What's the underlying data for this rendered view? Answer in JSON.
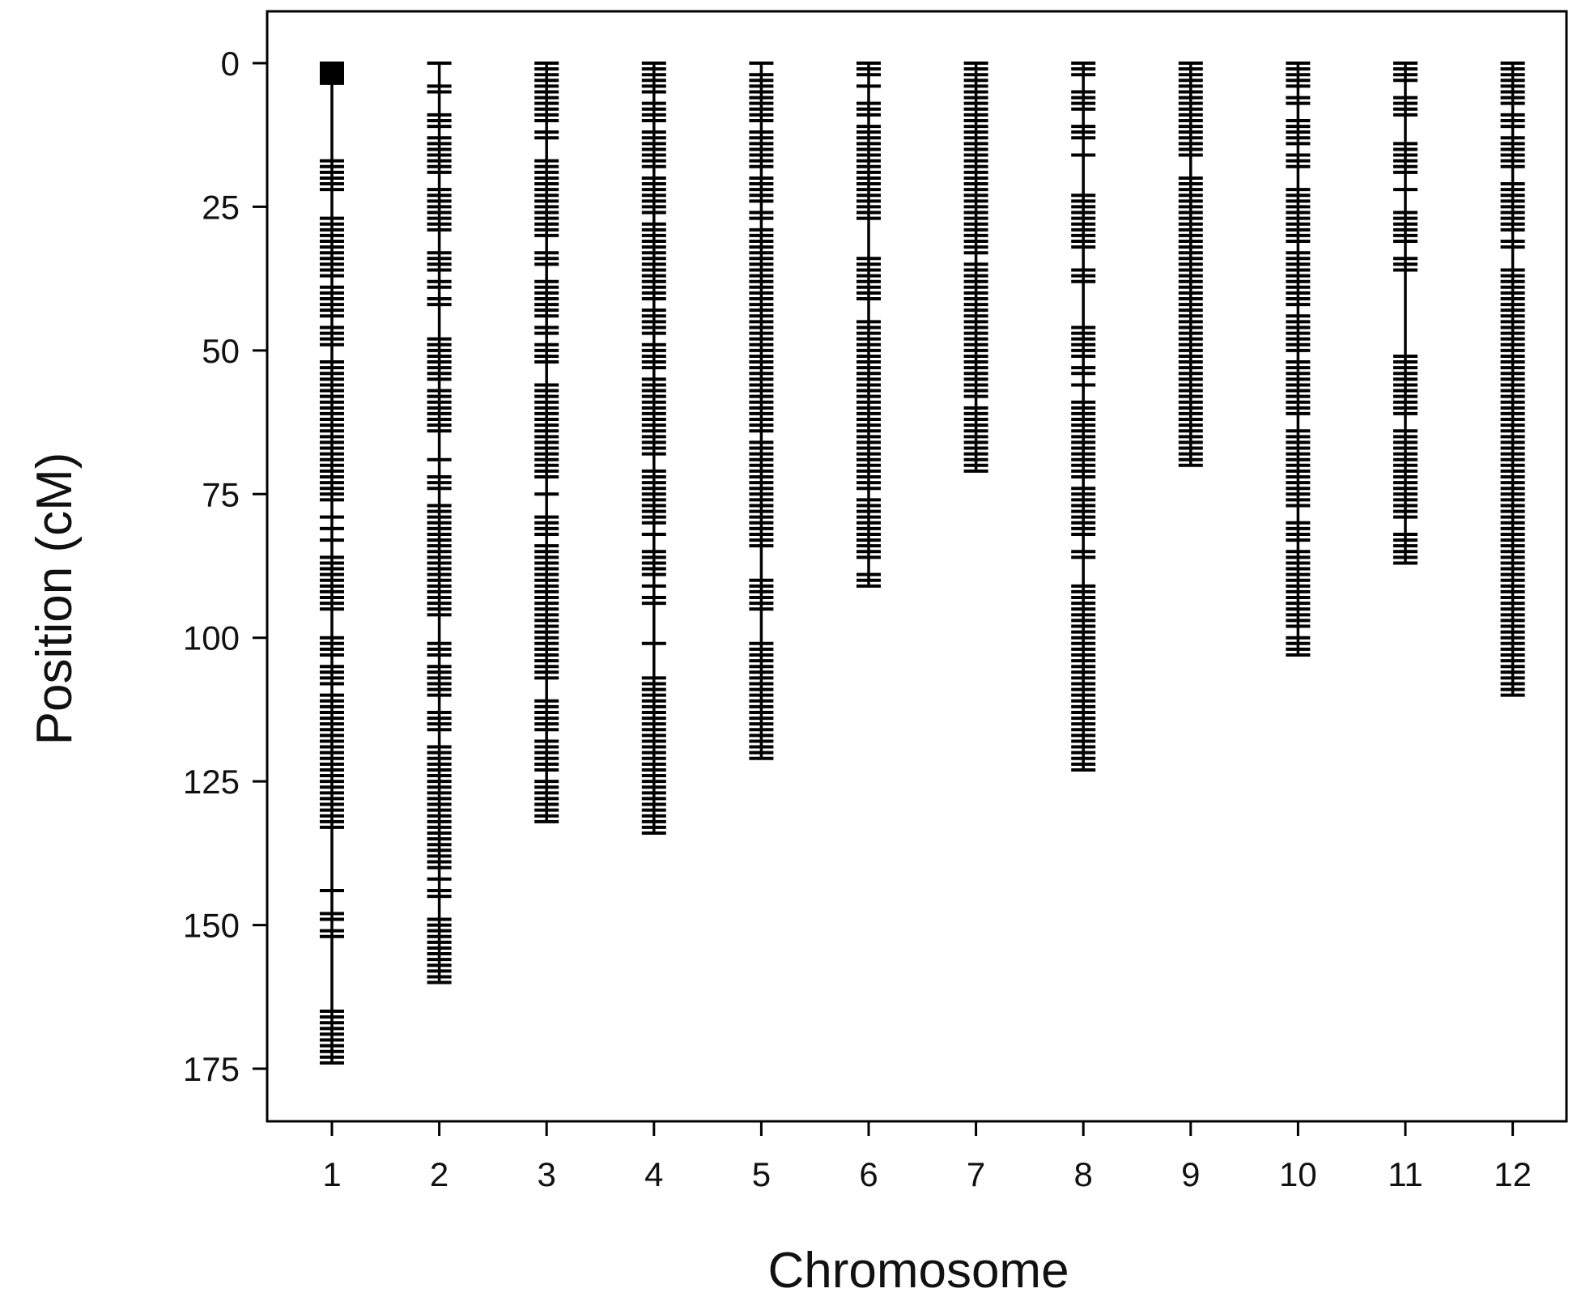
{
  "chart_data": {
    "type": "scatter",
    "title": "",
    "xlabel": "Chromosome",
    "ylabel": "Position (cM)",
    "categories": [
      "1",
      "2",
      "3",
      "4",
      "5",
      "6",
      "7",
      "8",
      "9",
      "10",
      "11",
      "12"
    ],
    "ylim": [
      0,
      175
    ],
    "y_inverted": true,
    "y_ticks": [
      0,
      25,
      50,
      75,
      100,
      125,
      150,
      175
    ],
    "grid": false,
    "legend": "none",
    "colors": {
      "marks": "#000000",
      "frame": "#000000"
    },
    "series": [
      {
        "chromosome": "1",
        "length": 174,
        "markers": [
          0,
          0.5,
          1,
          1.5,
          2,
          2.5,
          3,
          3.5,
          17,
          18,
          19,
          20,
          21,
          22,
          27,
          28,
          29,
          30,
          31,
          32,
          33,
          34,
          35,
          36,
          37,
          39,
          40,
          41,
          42,
          43,
          44,
          46,
          47,
          48,
          49,
          52,
          53,
          54,
          55,
          56,
          57,
          58,
          59,
          60,
          61,
          62,
          63,
          64,
          65,
          66,
          67,
          68,
          69,
          70,
          71,
          72,
          73,
          74,
          75,
          76,
          79,
          81,
          83,
          86,
          87,
          88,
          89,
          90,
          91,
          92,
          93,
          94,
          95,
          100,
          101,
          102,
          103,
          105,
          106,
          107,
          108,
          110,
          111,
          112,
          113,
          114,
          115,
          116,
          117,
          118,
          119,
          120,
          121,
          122,
          123,
          124,
          125,
          126,
          127,
          128,
          129,
          130,
          131,
          132,
          133,
          144,
          148,
          149,
          151,
          152,
          165,
          166,
          167,
          168,
          169,
          170,
          171,
          172,
          173,
          174
        ]
      },
      {
        "chromosome": "2",
        "length": 160,
        "markers": [
          0,
          4,
          5,
          9,
          10,
          11,
          13,
          14,
          15,
          16,
          17,
          18,
          19,
          22,
          23,
          24,
          25,
          26,
          27,
          28,
          29,
          33,
          34,
          35,
          36,
          38,
          39,
          41,
          42,
          48,
          49,
          50,
          51,
          52,
          53,
          54,
          55,
          57,
          58,
          59,
          60,
          61,
          62,
          63,
          64,
          69,
          72,
          73,
          74,
          77,
          78,
          79,
          80,
          81,
          82,
          83,
          84,
          85,
          86,
          87,
          88,
          89,
          90,
          91,
          92,
          93,
          94,
          95,
          96,
          101,
          102,
          103,
          105,
          106,
          107,
          108,
          109,
          110,
          113,
          114,
          115,
          116,
          119,
          120,
          121,
          122,
          123,
          124,
          125,
          126,
          127,
          128,
          129,
          130,
          131,
          132,
          133,
          134,
          135,
          136,
          137,
          138,
          139,
          140,
          142,
          144,
          145,
          149,
          150,
          151,
          152,
          153,
          154,
          155,
          156,
          157,
          158,
          159,
          160
        ]
      },
      {
        "chromosome": "3",
        "length": 132,
        "markers": [
          0,
          1,
          2,
          3,
          4,
          5,
          6,
          7,
          8,
          9,
          10,
          12,
          13,
          17,
          18,
          19,
          20,
          21,
          22,
          23,
          24,
          25,
          26,
          27,
          28,
          29,
          30,
          33,
          34,
          35,
          38,
          39,
          40,
          41,
          42,
          43,
          44,
          46,
          47,
          49,
          50,
          51,
          52,
          56,
          57,
          58,
          59,
          60,
          61,
          62,
          63,
          64,
          65,
          66,
          67,
          68,
          69,
          70,
          71,
          72,
          75,
          79,
          80,
          81,
          82,
          84,
          85,
          86,
          87,
          88,
          89,
          90,
          91,
          92,
          93,
          94,
          95,
          96,
          97,
          98,
          99,
          100,
          101,
          102,
          103,
          104,
          105,
          106,
          107,
          111,
          112,
          113,
          114,
          115,
          116,
          118,
          119,
          120,
          121,
          122,
          123,
          125,
          126,
          127,
          128,
          129,
          130,
          131,
          132
        ]
      },
      {
        "chromosome": "4",
        "length": 134,
        "markers": [
          0,
          1,
          2,
          3,
          4,
          5,
          7,
          8,
          9,
          10,
          12,
          13,
          14,
          15,
          16,
          17,
          18,
          20,
          21,
          22,
          23,
          24,
          25,
          26,
          28,
          29,
          30,
          31,
          32,
          33,
          34,
          35,
          36,
          37,
          38,
          39,
          40,
          41,
          43,
          44,
          45,
          46,
          47,
          49,
          50,
          51,
          52,
          53,
          55,
          56,
          57,
          58,
          59,
          60,
          61,
          62,
          63,
          64,
          65,
          66,
          67,
          68,
          71,
          72,
          73,
          74,
          75,
          76,
          77,
          78,
          79,
          80,
          82,
          85,
          86,
          87,
          88,
          89,
          91,
          93,
          94,
          101,
          107,
          108,
          109,
          110,
          111,
          112,
          113,
          114,
          115,
          116,
          117,
          118,
          119,
          120,
          121,
          122,
          123,
          124,
          125,
          126,
          127,
          128,
          129,
          130,
          131,
          132,
          133,
          134
        ]
      },
      {
        "chromosome": "5",
        "length": 121,
        "markers": [
          0,
          2,
          3,
          4,
          5,
          6,
          7,
          8,
          9,
          10,
          12,
          13,
          14,
          15,
          16,
          17,
          18,
          20,
          21,
          22,
          23,
          24,
          26,
          27,
          29,
          30,
          31,
          32,
          33,
          34,
          35,
          36,
          37,
          38,
          39,
          40,
          41,
          42,
          43,
          44,
          45,
          46,
          47,
          48,
          49,
          50,
          51,
          52,
          53,
          54,
          55,
          56,
          57,
          58,
          59,
          60,
          61,
          62,
          63,
          64,
          66,
          67,
          68,
          69,
          70,
          71,
          72,
          73,
          74,
          75,
          76,
          77,
          78,
          79,
          80,
          81,
          82,
          83,
          84,
          90,
          91,
          92,
          93,
          94,
          95,
          101,
          102,
          103,
          104,
          105,
          106,
          107,
          108,
          109,
          110,
          111,
          112,
          113,
          114,
          115,
          116,
          117,
          118,
          119,
          120,
          121
        ]
      },
      {
        "chromosome": "6",
        "length": 91,
        "markers": [
          0,
          1,
          2,
          4,
          7,
          8,
          9,
          11,
          12,
          13,
          14,
          15,
          16,
          17,
          18,
          19,
          20,
          21,
          22,
          23,
          24,
          25,
          26,
          27,
          34,
          35,
          36,
          37,
          38,
          39,
          40,
          41,
          45,
          46,
          47,
          48,
          49,
          50,
          51,
          52,
          53,
          54,
          55,
          56,
          57,
          58,
          59,
          60,
          61,
          62,
          63,
          64,
          65,
          66,
          67,
          68,
          69,
          70,
          71,
          72,
          73,
          74,
          76,
          77,
          78,
          79,
          80,
          81,
          82,
          83,
          84,
          85,
          86,
          89,
          90,
          91
        ]
      },
      {
        "chromosome": "7",
        "length": 71,
        "markers": [
          0,
          1,
          2,
          3,
          4,
          5,
          6,
          7,
          8,
          9,
          10,
          11,
          12,
          13,
          14,
          15,
          16,
          17,
          18,
          19,
          20,
          21,
          22,
          23,
          24,
          25,
          26,
          27,
          28,
          29,
          30,
          31,
          32,
          33,
          35,
          36,
          37,
          38,
          39,
          40,
          41,
          42,
          43,
          44,
          45,
          46,
          47,
          48,
          49,
          50,
          51,
          52,
          53,
          54,
          55,
          56,
          57,
          58,
          60,
          61,
          62,
          63,
          64,
          65,
          66,
          67,
          68,
          69,
          70,
          71
        ]
      },
      {
        "chromosome": "8",
        "length": 123,
        "markers": [
          0,
          1,
          2,
          5,
          6,
          7,
          8,
          11,
          12,
          13,
          16,
          23,
          24,
          25,
          26,
          27,
          28,
          29,
          30,
          31,
          32,
          36,
          37,
          38,
          46,
          47,
          48,
          49,
          50,
          51,
          53,
          54,
          56,
          59,
          60,
          61,
          62,
          63,
          64,
          65,
          66,
          67,
          68,
          69,
          70,
          71,
          72,
          74,
          75,
          76,
          77,
          78,
          79,
          80,
          81,
          82,
          85,
          86,
          91,
          92,
          93,
          94,
          95,
          96,
          97,
          98,
          99,
          100,
          101,
          102,
          103,
          104,
          105,
          106,
          107,
          108,
          109,
          110,
          111,
          112,
          113,
          114,
          115,
          116,
          117,
          118,
          119,
          120,
          121,
          122,
          123
        ]
      },
      {
        "chromosome": "9",
        "length": 70,
        "markers": [
          0,
          1,
          2,
          3,
          4,
          5,
          6,
          7,
          8,
          9,
          10,
          11,
          12,
          13,
          14,
          15,
          16,
          20,
          21,
          22,
          23,
          24,
          25,
          26,
          27,
          28,
          29,
          30,
          31,
          32,
          33,
          34,
          35,
          36,
          37,
          38,
          39,
          40,
          41,
          42,
          43,
          44,
          45,
          46,
          47,
          48,
          49,
          50,
          51,
          52,
          53,
          54,
          55,
          56,
          57,
          58,
          59,
          60,
          61,
          62,
          63,
          64,
          65,
          66,
          67,
          68,
          69,
          70
        ]
      },
      {
        "chromosome": "10",
        "length": 103,
        "markers": [
          0,
          1,
          2,
          3,
          4,
          6,
          7,
          10,
          11,
          12,
          13,
          14,
          16,
          17,
          18,
          22,
          23,
          24,
          25,
          26,
          27,
          28,
          29,
          30,
          31,
          33,
          34,
          35,
          36,
          37,
          38,
          39,
          40,
          41,
          42,
          44,
          45,
          46,
          47,
          48,
          49,
          50,
          52,
          53,
          54,
          55,
          56,
          57,
          58,
          59,
          60,
          61,
          64,
          65,
          66,
          67,
          68,
          69,
          70,
          71,
          72,
          73,
          74,
          75,
          76,
          77,
          80,
          81,
          82,
          83,
          85,
          86,
          87,
          88,
          89,
          90,
          91,
          92,
          93,
          94,
          95,
          96,
          97,
          98,
          100,
          101,
          102,
          103
        ]
      },
      {
        "chromosome": "11",
        "length": 87,
        "markers": [
          0,
          1,
          2,
          3,
          6,
          7,
          8,
          9,
          14,
          15,
          16,
          17,
          18,
          19,
          22,
          26,
          27,
          28,
          29,
          30,
          31,
          34,
          35,
          36,
          51,
          52,
          53,
          54,
          55,
          56,
          57,
          58,
          59,
          60,
          61,
          64,
          65,
          66,
          67,
          68,
          69,
          70,
          71,
          72,
          73,
          74,
          75,
          76,
          77,
          78,
          79,
          82,
          83,
          84,
          85,
          86,
          87
        ]
      },
      {
        "chromosome": "12",
        "length": 110,
        "markers": [
          0,
          1,
          2,
          3,
          4,
          5,
          6,
          7,
          9,
          10,
          11,
          13,
          14,
          15,
          16,
          17,
          18,
          21,
          22,
          23,
          24,
          25,
          26,
          27,
          28,
          29,
          31,
          32,
          36,
          37,
          38,
          39,
          40,
          41,
          42,
          43,
          44,
          45,
          46,
          47,
          48,
          49,
          50,
          51,
          52,
          53,
          54,
          55,
          56,
          57,
          58,
          59,
          60,
          61,
          62,
          63,
          64,
          65,
          66,
          67,
          68,
          69,
          70,
          71,
          72,
          73,
          74,
          75,
          76,
          77,
          78,
          79,
          80,
          81,
          82,
          83,
          84,
          85,
          86,
          87,
          88,
          89,
          90,
          91,
          92,
          93,
          94,
          95,
          96,
          97,
          98,
          99,
          100,
          101,
          102,
          103,
          104,
          105,
          106,
          107,
          108,
          109,
          110
        ]
      }
    ]
  }
}
